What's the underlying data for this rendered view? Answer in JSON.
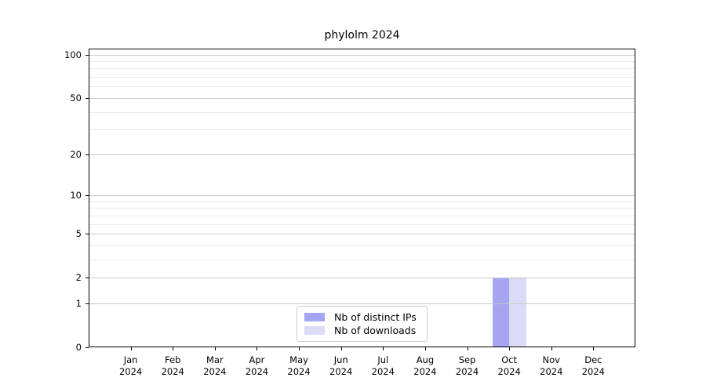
{
  "chart_data": {
    "type": "bar",
    "title": "phylolm 2024",
    "months": [
      "Jan",
      "Feb",
      "Mar",
      "Apr",
      "May",
      "Jun",
      "Jul",
      "Aug",
      "Sep",
      "Oct",
      "Nov",
      "Dec"
    ],
    "year": "2024",
    "series": [
      {
        "name": "Nb of distinct IPs",
        "color": "#a5a5f2",
        "values": [
          0,
          0,
          0,
          0,
          0,
          0,
          0,
          0,
          0,
          2,
          0,
          0
        ]
      },
      {
        "name": "Nb of downloads",
        "color": "#dbdbf8",
        "values": [
          0,
          0,
          0,
          0,
          0,
          0,
          0,
          0,
          0,
          2,
          0,
          0
        ]
      }
    ],
    "xlabel": "",
    "ylabel": "",
    "yscale": "log1p",
    "ylim": [
      0,
      110
    ],
    "y_major_ticks": [
      0,
      1,
      2,
      5,
      10,
      20,
      50,
      100
    ],
    "y_minor_gridlines": [
      3,
      4,
      6,
      7,
      8,
      9,
      30,
      40,
      60,
      70,
      80,
      90
    ],
    "grid": "horizontal, majors and minors, drawn above bars",
    "legend_position": "lower center",
    "colors": {
      "background": "#ffffff",
      "major_grid": "#c9c9c9",
      "minor_grid": "#ececec",
      "spine": "#000000",
      "text": "#000000"
    }
  }
}
